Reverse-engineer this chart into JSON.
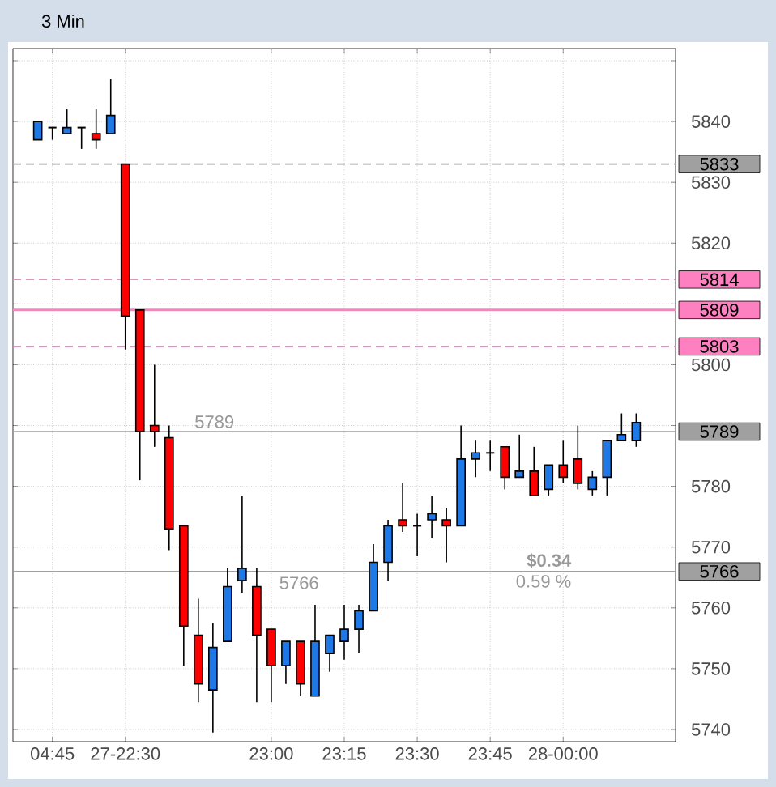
{
  "chart_data": {
    "type": "candlestick",
    "title": "3 Min",
    "categories": [
      null,
      "04:45",
      null,
      null,
      null,
      null,
      "27-22:30",
      null,
      null,
      null,
      null,
      null,
      null,
      null,
      null,
      null,
      "23:00",
      null,
      null,
      null,
      null,
      "23:15",
      null,
      null,
      null,
      null,
      "23:30",
      null,
      null,
      null,
      null,
      "23:45",
      null,
      null,
      null,
      null,
      "28-00:00",
      null,
      null,
      null,
      null,
      null
    ],
    "ohlc": [
      [
        5837,
        5840,
        5837,
        5840
      ],
      [
        5839,
        5839,
        5837,
        5839
      ],
      [
        5838,
        5842,
        5838,
        5839
      ],
      [
        5839,
        5839,
        5835.5,
        5839
      ],
      [
        5838,
        5842,
        5835.5,
        5837
      ],
      [
        5838,
        5847,
        5838,
        5841
      ],
      [
        5833,
        5833,
        5802.5,
        5808
      ],
      [
        5809,
        5809,
        5781,
        5789
      ],
      [
        5790,
        5800,
        5786.5,
        5789
      ],
      [
        5788,
        5790,
        5769.5,
        5773
      ],
      [
        5773.5,
        5773.5,
        5750.5,
        5757
      ],
      [
        5755.5,
        5761.5,
        5744.5,
        5747.5
      ],
      [
        5746.5,
        5757.5,
        5739.5,
        5753.5
      ],
      [
        5754.5,
        5766.5,
        5754.5,
        5763.5
      ],
      [
        5764.5,
        5778.5,
        5762.5,
        5766.5
      ],
      [
        5763.5,
        5766.5,
        5744.5,
        5755.5
      ],
      [
        5756.5,
        5756.5,
        5744.5,
        5750.5
      ],
      [
        5750.5,
        5754.5,
        5747.5,
        5754.5
      ],
      [
        5754.5,
        5754.5,
        5745.5,
        5747.5
      ],
      [
        5745.5,
        5760.5,
        5745.5,
        5754.5
      ],
      [
        5752.5,
        5755.5,
        5749.5,
        5755.5
      ],
      [
        5754.5,
        5760.5,
        5751.5,
        5756.5
      ],
      [
        5756.5,
        5760.5,
        5752.5,
        5759.5
      ],
      [
        5759.5,
        5770.5,
        5759.5,
        5767.5
      ],
      [
        5767.5,
        5774.5,
        5764.5,
        5773.5
      ],
      [
        5774.5,
        5780.5,
        5772.5,
        5773.5
      ],
      [
        5773.5,
        5775.5,
        5768.5,
        5773.5
      ],
      [
        5774.5,
        5778.5,
        5771.5,
        5775.5
      ],
      [
        5774.5,
        5776.5,
        5767.5,
        5773.5
      ],
      [
        5773.5,
        5790,
        5773.5,
        5784.5
      ],
      [
        5784.5,
        5787.5,
        5781.5,
        5785.5
      ],
      [
        5785.5,
        5787.5,
        5782.5,
        5785.5
      ],
      [
        5786.5,
        5786.5,
        5779.5,
        5781.5
      ],
      [
        5781.5,
        5788.5,
        5781.5,
        5782.5
      ],
      [
        5782.5,
        5786.5,
        5778.5,
        5778.5
      ],
      [
        5779.5,
        5783.5,
        5778.5,
        5783.5
      ],
      [
        5783.5,
        5787.5,
        5780.5,
        5781.5
      ],
      [
        5784.5,
        5790,
        5779.5,
        5780.5
      ],
      [
        5779.5,
        5782.5,
        5778.5,
        5781.5
      ],
      [
        5781.5,
        5787.5,
        5778.5,
        5787.5
      ],
      [
        5787.5,
        5792,
        5787.5,
        5788.5
      ],
      [
        5787.5,
        5792,
        5786.5,
        5790.5
      ]
    ],
    "colors": [
      "#1e78e6",
      "#000000",
      "#1e78e6",
      "#000000",
      "#ff0000",
      "#1e78e6",
      "#ff0000",
      "#ff0000",
      "#ff0000",
      "#ff0000",
      "#ff0000",
      "#ff0000",
      "#1e78e6",
      "#1e78e6",
      "#1e78e6",
      "#ff0000",
      "#ff0000",
      "#1e78e6",
      "#ff0000",
      "#1e78e6",
      "#1e78e6",
      "#1e78e6",
      "#1e78e6",
      "#1e78e6",
      "#1e78e6",
      "#ff0000",
      "#000000",
      "#1e78e6",
      "#ff0000",
      "#1e78e6",
      "#1e78e6",
      "#000000",
      "#ff0000",
      "#1e78e6",
      "#ff0000",
      "#1e78e6",
      "#ff0000",
      "#ff0000",
      "#1e78e6",
      "#1e78e6",
      "#1e78e6",
      "#1e78e6"
    ],
    "ylim": [
      5738,
      5852
    ],
    "yticks": [
      5740,
      5750,
      5760,
      5770,
      5780,
      {
        "value": 5790,
        "label": null
      },
      5800,
      {
        "value": 5810,
        "label": null
      },
      5820,
      5830,
      5840,
      {
        "value": 5850,
        "label": null
      }
    ],
    "grid": true,
    "ref_lines": [
      {
        "axis": "y",
        "value": 5833,
        "label": "5833",
        "color": "#a0a0a0",
        "line_style": "dashed"
      },
      {
        "axis": "y",
        "value": 5814,
        "label": "5814",
        "color": "#ff80c0",
        "line_style": "dashed"
      },
      {
        "axis": "y",
        "value": 5809,
        "label": "5809",
        "color": "#ff80c0",
        "line_style": "solid"
      },
      {
        "axis": "y",
        "value": 5803,
        "label": "5803",
        "color": "#ff80c0",
        "line_style": "dashed"
      },
      {
        "axis": "y",
        "value": 5789,
        "label": "5789",
        "color": "#a0a0a0",
        "line_style": "solid"
      },
      {
        "axis": "y",
        "value": 5766,
        "label": "5766",
        "color": "#a0a0a0",
        "line_style": "solid"
      }
    ],
    "annotations": [
      {
        "text": "5789",
        "y": 5789
      },
      {
        "text": "5766",
        "y": 5766
      },
      {
        "text": "$0.34",
        "y": 5766
      },
      {
        "text": "0.59 %",
        "y": 5766
      }
    ]
  }
}
